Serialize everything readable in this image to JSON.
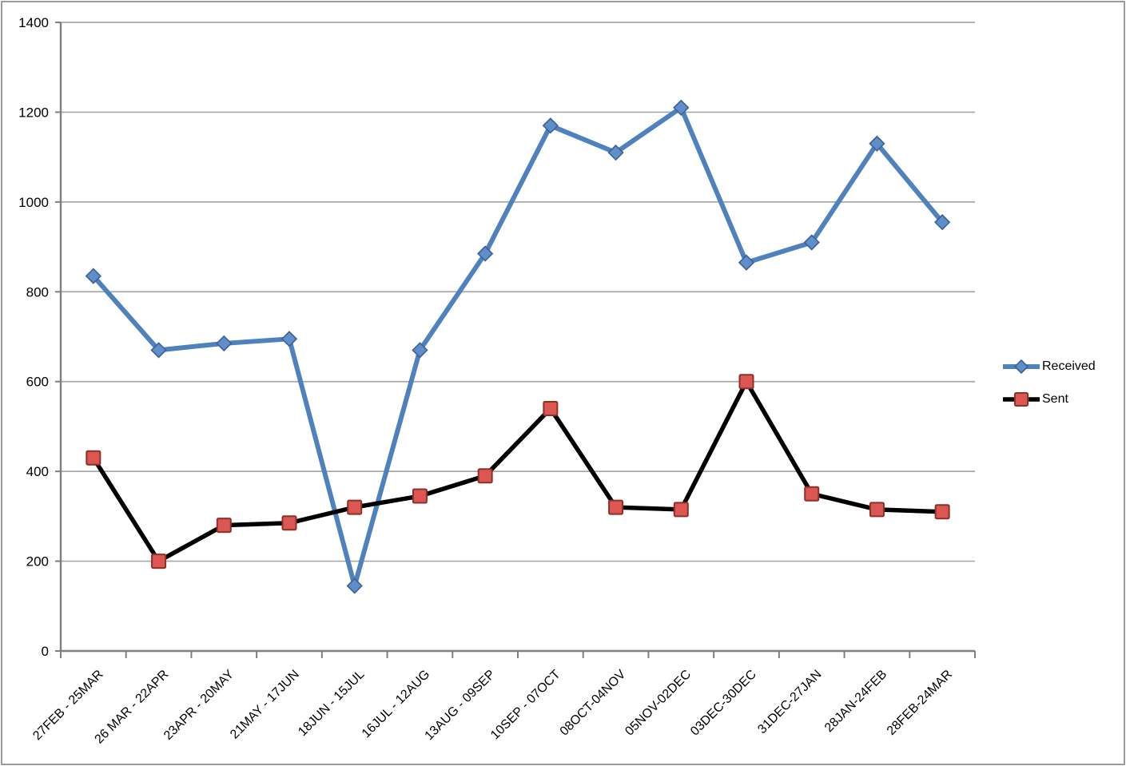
{
  "chart_data": {
    "type": "line",
    "title": "",
    "xlabel": "",
    "ylabel": "",
    "categories": [
      "27FEB - 25MAR",
      "26 MAR - 22APR",
      "23APR - 20MAY",
      "21MAY - 17JUN",
      "18JUN - 15JUL",
      "16JUL - 12AUG",
      "13AUG - 09SEP",
      "10SEP - 07OCT",
      "08OCT-04NOV",
      "05NOV-02DEC",
      "03DEC-30DEC",
      "31DEC-27JAN",
      "28JAN-24FEB",
      "28FEB-24MAR"
    ],
    "series": [
      {
        "name": "Received",
        "values": [
          835,
          670,
          685,
          695,
          145,
          670,
          885,
          1170,
          1110,
          1210,
          865,
          910,
          1130,
          955
        ],
        "line_color": "#4f81bd",
        "line_width": 6,
        "marker": "diamond",
        "marker_fill": "#5f8ecb",
        "marker_stroke": "#3a6191"
      },
      {
        "name": "Sent",
        "values": [
          430,
          200,
          280,
          285,
          320,
          345,
          390,
          540,
          320,
          315,
          600,
          350,
          315,
          310
        ],
        "line_color": "#000000",
        "line_width": 5.5,
        "marker": "square",
        "marker_fill": "#dc5752",
        "marker_stroke": "#8e2f2a"
      }
    ],
    "ylim": [
      0,
      1400
    ],
    "y_ticks": [
      0,
      200,
      400,
      600,
      800,
      1000,
      1200,
      1400
    ],
    "grid": "horizontal",
    "legend_position": "right",
    "x_label_rotation_deg": -45
  },
  "style_colors": {
    "gridline": "#a8a8a8",
    "axis": "#7f7f7f",
    "text": "#000000",
    "background": "#ffffff",
    "frame_border": "#9b9b9b"
  }
}
